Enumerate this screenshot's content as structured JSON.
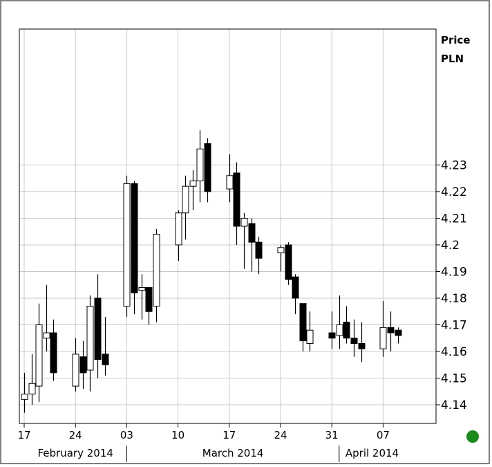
{
  "chart_data": {
    "type": "candlestick",
    "title": "",
    "ylabel": "Price",
    "yunit": "PLN",
    "ylim": [
      4.133,
      4.281
    ],
    "yticks": [
      "4.14",
      "4.15",
      "4.16",
      "4.17",
      "4.18",
      "4.19",
      "4.2",
      "4.21",
      "4.22",
      "4.23"
    ],
    "grid": true,
    "xticks": [
      {
        "label": "17",
        "date": "2014-02-17"
      },
      {
        "label": "24",
        "date": "2014-02-24"
      },
      {
        "label": "03",
        "date": "2014-03-03"
      },
      {
        "label": "10",
        "date": "2014-03-10"
      },
      {
        "label": "17",
        "date": "2014-03-17"
      },
      {
        "label": "24",
        "date": "2014-03-24"
      },
      {
        "label": "31",
        "date": "2014-03-31"
      },
      {
        "label": "07",
        "date": "2014-04-07"
      }
    ],
    "months": [
      {
        "label": "February 2014",
        "start": "2014-02-17",
        "end": "2014-03-03"
      },
      {
        "label": "March 2014",
        "start": "2014-03-03",
        "end": "2014-04-01"
      },
      {
        "label": "April 2014",
        "start": "2014-04-01",
        "end": "2014-04-10"
      }
    ],
    "candles": [
      {
        "date": "2014-02-17",
        "open": 4.142,
        "high": 4.152,
        "low": 4.137,
        "close": 4.144
      },
      {
        "date": "2014-02-18",
        "open": 4.144,
        "high": 4.159,
        "low": 4.14,
        "close": 4.148
      },
      {
        "date": "2014-02-19",
        "open": 4.147,
        "high": 4.178,
        "low": 4.141,
        "close": 4.17
      },
      {
        "date": "2014-02-20",
        "open": 4.165,
        "high": 4.185,
        "low": 4.16,
        "close": 4.167
      },
      {
        "date": "2014-02-21",
        "open": 4.167,
        "high": 4.172,
        "low": 4.149,
        "close": 4.152
      },
      {
        "date": "2014-02-24",
        "open": 4.147,
        "high": 4.165,
        "low": 4.145,
        "close": 4.159
      },
      {
        "date": "2014-02-25",
        "open": 4.158,
        "high": 4.164,
        "low": 4.146,
        "close": 4.152
      },
      {
        "date": "2014-02-26",
        "open": 4.153,
        "high": 4.181,
        "low": 4.145,
        "close": 4.177
      },
      {
        "date": "2014-02-27",
        "open": 4.18,
        "high": 4.189,
        "low": 4.15,
        "close": 4.157
      },
      {
        "date": "2014-02-28",
        "open": 4.159,
        "high": 4.173,
        "low": 4.151,
        "close": 4.155
      },
      {
        "date": "2014-03-03",
        "open": 4.177,
        "high": 4.226,
        "low": 4.173,
        "close": 4.223
      },
      {
        "date": "2014-03-04",
        "open": 4.223,
        "high": 4.224,
        "low": 4.174,
        "close": 4.182
      },
      {
        "date": "2014-03-05",
        "open": 4.183,
        "high": 4.189,
        "low": 4.172,
        "close": 4.184
      },
      {
        "date": "2014-03-06",
        "open": 4.184,
        "high": 4.184,
        "low": 4.17,
        "close": 4.175
      },
      {
        "date": "2014-03-07",
        "open": 4.177,
        "high": 4.206,
        "low": 4.171,
        "close": 4.204
      },
      {
        "date": "2014-03-10",
        "open": 4.2,
        "high": 4.213,
        "low": 4.194,
        "close": 4.212
      },
      {
        "date": "2014-03-11",
        "open": 4.212,
        "high": 4.226,
        "low": 4.202,
        "close": 4.222
      },
      {
        "date": "2014-03-12",
        "open": 4.222,
        "high": 4.228,
        "low": 4.213,
        "close": 4.224
      },
      {
        "date": "2014-03-13",
        "open": 4.224,
        "high": 4.243,
        "low": 4.216,
        "close": 4.236
      },
      {
        "date": "2014-03-14",
        "open": 4.238,
        "high": 4.24,
        "low": 4.216,
        "close": 4.22
      },
      {
        "date": "2014-03-17",
        "open": 4.221,
        "high": 4.234,
        "low": 4.216,
        "close": 4.226
      },
      {
        "date": "2014-03-18",
        "open": 4.227,
        "high": 4.231,
        "low": 4.2,
        "close": 4.207
      },
      {
        "date": "2014-03-19",
        "open": 4.207,
        "high": 4.212,
        "low": 4.191,
        "close": 4.21
      },
      {
        "date": "2014-03-20",
        "open": 4.208,
        "high": 4.21,
        "low": 4.19,
        "close": 4.201
      },
      {
        "date": "2014-03-21",
        "open": 4.201,
        "high": 4.203,
        "low": 4.189,
        "close": 4.195
      },
      {
        "date": "2014-03-24",
        "open": 4.197,
        "high": 4.2,
        "low": 4.19,
        "close": 4.199
      },
      {
        "date": "2014-03-25",
        "open": 4.2,
        "high": 4.201,
        "low": 4.185,
        "close": 4.187
      },
      {
        "date": "2014-03-26",
        "open": 4.188,
        "high": 4.189,
        "low": 4.174,
        "close": 4.18
      },
      {
        "date": "2014-03-27",
        "open": 4.178,
        "high": 4.178,
        "low": 4.16,
        "close": 4.164
      },
      {
        "date": "2014-03-28",
        "open": 4.163,
        "high": 4.175,
        "low": 4.16,
        "close": 4.168
      },
      {
        "date": "2014-03-31",
        "open": 4.167,
        "high": 4.175,
        "low": 4.161,
        "close": 4.165
      },
      {
        "date": "2014-04-01",
        "open": 4.166,
        "high": 4.181,
        "low": 4.161,
        "close": 4.17
      },
      {
        "date": "2014-04-02",
        "open": 4.171,
        "high": 4.177,
        "low": 4.163,
        "close": 4.165
      },
      {
        "date": "2014-04-03",
        "open": 4.165,
        "high": 4.172,
        "low": 4.158,
        "close": 4.163
      },
      {
        "date": "2014-04-04",
        "open": 4.163,
        "high": 4.171,
        "low": 4.156,
        "close": 4.161
      },
      {
        "date": "2014-04-07",
        "open": 4.161,
        "high": 4.179,
        "low": 4.158,
        "close": 4.169
      },
      {
        "date": "2014-04-08",
        "open": 4.169,
        "high": 4.175,
        "low": 4.16,
        "close": 4.167
      },
      {
        "date": "2014-04-09",
        "open": 4.168,
        "high": 4.169,
        "low": 4.163,
        "close": 4.166
      }
    ],
    "colors": {
      "up_body": "#ffffff",
      "down_body": "#000000",
      "grid": "#c8c8c8",
      "frame": "#808080",
      "indicator": "#1a8a1a"
    }
  }
}
